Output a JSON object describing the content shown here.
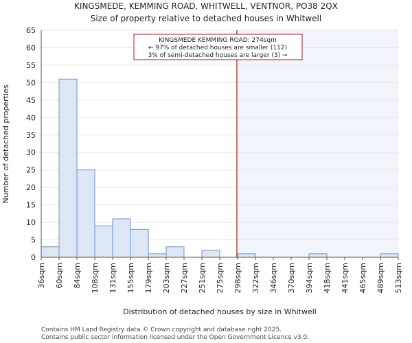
{
  "chart_data": {
    "type": "bar",
    "title": "KINGSMEDE, KEMMING ROAD, WHITWELL, VENTNOR, PO38 2QX",
    "subtitle": "Size of property relative to detached houses in Whitwell",
    "xlabel": "Distribution of detached houses by size in Whitwell",
    "ylabel": "Number of detached properties",
    "ylim": [
      0,
      65
    ],
    "yticks": [
      0,
      5,
      10,
      15,
      20,
      25,
      30,
      35,
      40,
      45,
      50,
      55,
      60,
      65
    ],
    "xtick_labels": [
      "36sqm",
      "60sqm",
      "84sqm",
      "108sqm",
      "131sqm",
      "155sqm",
      "179sqm",
      "203sqm",
      "227sqm",
      "251sqm",
      "275sqm",
      "298sqm",
      "322sqm",
      "346sqm",
      "370sqm",
      "394sqm",
      "418sqm",
      "441sqm",
      "465sqm",
      "489sqm",
      "513sqm"
    ],
    "values": [
      3,
      51,
      25,
      9,
      11,
      8,
      1,
      3,
      0,
      2,
      0,
      1,
      0,
      0,
      0,
      1,
      0,
      0,
      0,
      1
    ],
    "marker_bin_value": 274,
    "marker_bin_fraction": 0.96,
    "colors": {
      "bar_fill": "#dce6f5",
      "bar_stroke": "#6f93c5",
      "marker": "#a11c1c",
      "highlight": "#f2f4fc",
      "grid": "#e8e8e8"
    },
    "annotation": {
      "line1": "KINGSMEDE KEMMING ROAD: 274sqm",
      "line2": "← 97% of detached houses are smaller (112)",
      "line3": "3% of semi-detached houses are larger (3) →"
    }
  },
  "footer": {
    "line1": "Contains HM Land Registry data © Crown copyright and database right 2025.",
    "line2": "Contains public sector information licensed under the Open Government Licence v3.0."
  }
}
